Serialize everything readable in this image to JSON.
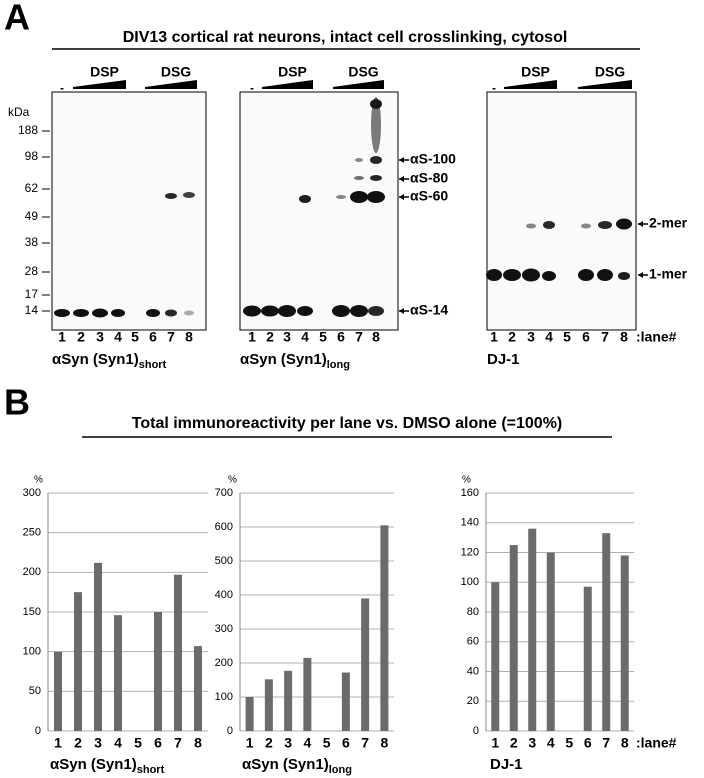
{
  "panel_a": {
    "letter": "A",
    "title": "DIV13 cortical rat neurons, intact cell crosslinking, cytosol",
    "marker_unit": "kDa",
    "markers": [
      188,
      98,
      62,
      49,
      38,
      28,
      17,
      14
    ],
    "blots": [
      {
        "treatments": [
          "-",
          "DSP",
          "DSG"
        ],
        "lanes": [
          "1",
          "2",
          "3",
          "4",
          "5",
          "6",
          "7",
          "8"
        ],
        "caption": {
          "main": "αSyn (Syn1)",
          "sub": "short"
        }
      },
      {
        "treatments": [
          "-",
          "DSP",
          "DSG"
        ],
        "lanes": [
          "1",
          "2",
          "3",
          "4",
          "5",
          "6",
          "7",
          "8"
        ],
        "caption": {
          "main": "αSyn (Syn1)",
          "sub": "long"
        },
        "band_labels": [
          "αS-100",
          "αS-80",
          "αS-60",
          "αS-14"
        ]
      },
      {
        "treatments": [
          "-",
          "DSP",
          "DSG"
        ],
        "lanes": [
          "1",
          "2",
          "3",
          "4",
          "5",
          "6",
          "7",
          "8"
        ],
        "caption": {
          "main": "DJ-1"
        },
        "band_labels": [
          "2-mer",
          "1-mer"
        ],
        "lane_suffix": ":lane#"
      }
    ]
  },
  "panel_b": {
    "letter": "B",
    "title": "Total immunoreactivity per lane vs. DMSO alone (=100%)"
  },
  "chart_data": [
    {
      "type": "bar",
      "title": "αSyn (Syn1)",
      "title_sub": "short",
      "y_unit": "%",
      "categories": [
        "1",
        "2",
        "3",
        "4",
        "5",
        "6",
        "7",
        "8"
      ],
      "values": [
        100,
        175,
        212,
        146,
        null,
        150,
        197,
        107
      ],
      "color": "#6b6b6b",
      "ylim": [
        0,
        300
      ],
      "yticks": [
        0,
        50,
        100,
        150,
        200,
        250,
        300
      ],
      "grid": true
    },
    {
      "type": "bar",
      "title": "αSyn (Syn1)",
      "title_sub": "long",
      "y_unit": "%",
      "categories": [
        "1",
        "2",
        "3",
        "4",
        "5",
        "6",
        "7",
        "8"
      ],
      "values": [
        100,
        152,
        177,
        215,
        null,
        172,
        390,
        605
      ],
      "color": "#6b6b6b",
      "ylim": [
        0,
        700
      ],
      "yticks": [
        0,
        100,
        200,
        300,
        400,
        500,
        600,
        700
      ],
      "grid": true
    },
    {
      "type": "bar",
      "title": "DJ-1",
      "y_unit": "%",
      "categories": [
        "1",
        "2",
        "3",
        "4",
        "5",
        "6",
        "7",
        "8"
      ],
      "lane_suffix": ":lane#",
      "values": [
        100,
        125,
        136,
        120,
        null,
        97,
        133,
        118
      ],
      "color": "#6b6b6b",
      "ylim": [
        0,
        160
      ],
      "yticks": [
        0,
        20,
        40,
        60,
        80,
        100,
        120,
        140,
        160
      ],
      "grid": true
    }
  ]
}
